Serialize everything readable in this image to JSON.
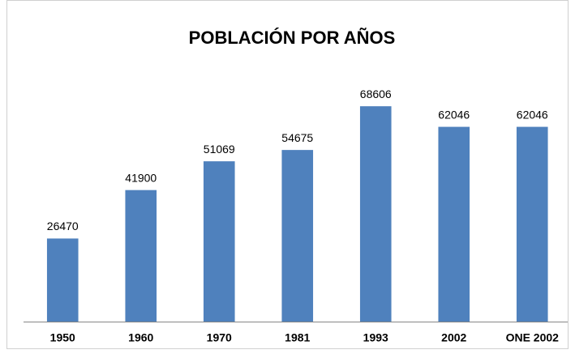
{
  "chart_data": {
    "type": "bar",
    "title": "POBLACIÓN POR AÑOS",
    "categories": [
      "1950",
      "1960",
      "1970",
      "1981",
      "1993",
      "2002",
      "ONE 2002"
    ],
    "values": [
      26470,
      41900,
      51069,
      54675,
      68606,
      62046,
      62046
    ],
    "color": "#4f81bd",
    "ylim": [
      0,
      80000
    ]
  }
}
